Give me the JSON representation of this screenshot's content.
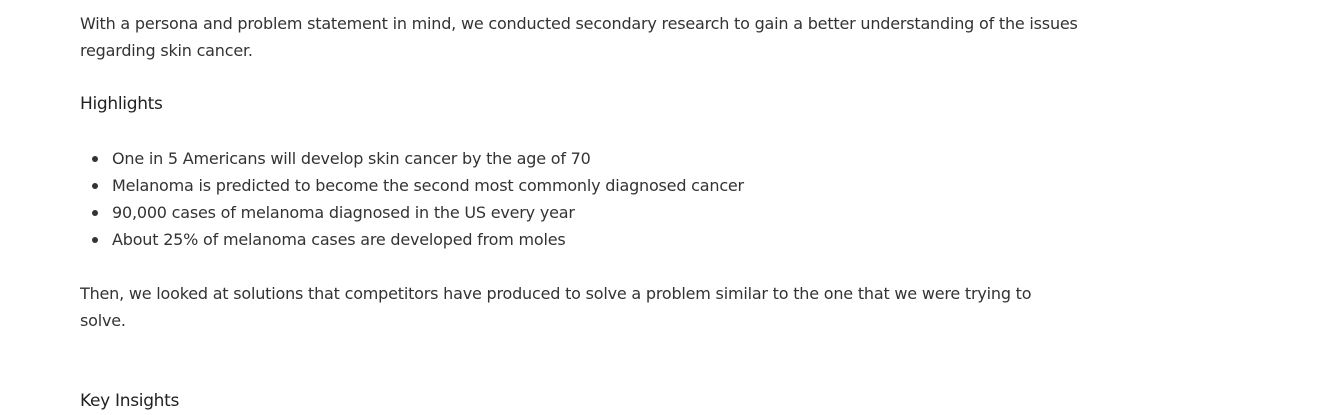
{
  "intro": "With a persona and problem statement in mind, we conducted secondary research to gain a better understanding of the issues regarding skin cancer.",
  "highlights_heading": "Highlights",
  "highlights": [
    "One in 5 Americans will develop skin cancer by the age of 70",
    "Melanoma is predicted to become the second most commonly diagnosed cancer",
    "90,000 cases of melanoma diagnosed in the US every year",
    "About 25% of melanoma cases are developed from moles"
  ],
  "competitors": "Then, we looked at solutions that competitors have produced to solve a problem similar to the one that we were trying to solve.",
  "insights_heading": "Key Insights"
}
